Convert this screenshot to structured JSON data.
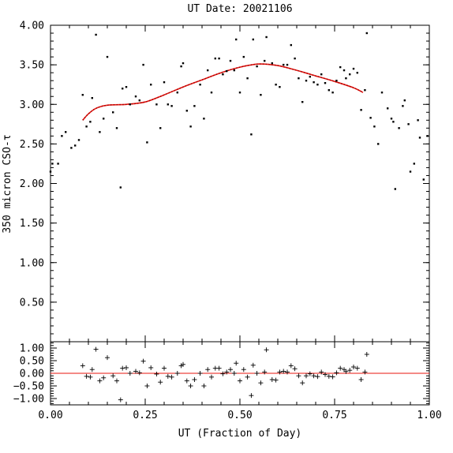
{
  "chart_data": [
    {
      "type": "scatter",
      "title": "UT Date: 20021106",
      "xlabel": "",
      "ylabel": "350 micron CSO-τ",
      "xlim": [
        0.0,
        1.0
      ],
      "ylim": [
        0.0,
        4.0
      ],
      "yticks": [
        "0.50",
        "1.00",
        "1.50",
        "2.00",
        "2.50",
        "3.00",
        "3.50",
        "4.00"
      ],
      "grid": false,
      "series": [
        {
          "kind": "points",
          "color": "#000000",
          "points": [
            [
              0.0,
              2.15
            ],
            [
              0.005,
              2.25
            ],
            [
              0.02,
              2.25
            ],
            [
              0.03,
              2.6
            ],
            [
              0.04,
              2.65
            ],
            [
              0.055,
              2.45
            ],
            [
              0.065,
              2.48
            ],
            [
              0.075,
              2.55
            ],
            [
              0.085,
              3.12
            ],
            [
              0.095,
              2.72
            ],
            [
              0.105,
              2.78
            ],
            [
              0.11,
              3.08
            ],
            [
              0.12,
              3.88
            ],
            [
              0.13,
              2.65
            ],
            [
              0.14,
              2.82
            ],
            [
              0.15,
              3.6
            ],
            [
              0.165,
              2.9
            ],
            [
              0.175,
              2.7
            ],
            [
              0.185,
              1.95
            ],
            [
              0.19,
              3.2
            ],
            [
              0.2,
              3.22
            ],
            [
              0.21,
              3.0
            ],
            [
              0.225,
              3.1
            ],
            [
              0.235,
              3.05
            ],
            [
              0.245,
              3.5
            ],
            [
              0.255,
              2.52
            ],
            [
              0.265,
              3.25
            ],
            [
              0.28,
              3.0
            ],
            [
              0.29,
              2.7
            ],
            [
              0.3,
              3.28
            ],
            [
              0.31,
              3.0
            ],
            [
              0.32,
              2.98
            ],
            [
              0.335,
              3.15
            ],
            [
              0.345,
              3.48
            ],
            [
              0.35,
              3.52
            ],
            [
              0.36,
              2.92
            ],
            [
              0.37,
              2.72
            ],
            [
              0.38,
              2.98
            ],
            [
              0.395,
              3.25
            ],
            [
              0.405,
              2.82
            ],
            [
              0.415,
              3.43
            ],
            [
              0.425,
              3.15
            ],
            [
              0.435,
              3.58
            ],
            [
              0.445,
              3.58
            ],
            [
              0.455,
              3.38
            ],
            [
              0.465,
              3.42
            ],
            [
              0.475,
              3.55
            ],
            [
              0.485,
              3.43
            ],
            [
              0.49,
              3.82
            ],
            [
              0.5,
              3.15
            ],
            [
              0.51,
              3.6
            ],
            [
              0.52,
              3.33
            ],
            [
              0.53,
              2.62
            ],
            [
              0.535,
              3.82
            ],
            [
              0.545,
              3.48
            ],
            [
              0.555,
              3.12
            ],
            [
              0.565,
              3.55
            ],
            [
              0.57,
              3.85
            ],
            [
              0.585,
              3.52
            ],
            [
              0.595,
              3.25
            ],
            [
              0.605,
              3.22
            ],
            [
              0.615,
              3.5
            ],
            [
              0.625,
              3.5
            ],
            [
              0.635,
              3.75
            ],
            [
              0.645,
              3.58
            ],
            [
              0.655,
              3.33
            ],
            [
              0.665,
              3.03
            ],
            [
              0.675,
              3.3
            ],
            [
              0.685,
              3.35
            ],
            [
              0.695,
              3.28
            ],
            [
              0.705,
              3.25
            ],
            [
              0.715,
              3.38
            ],
            [
              0.725,
              3.27
            ],
            [
              0.735,
              3.18
            ],
            [
              0.745,
              3.15
            ],
            [
              0.755,
              3.3
            ],
            [
              0.765,
              3.47
            ],
            [
              0.775,
              3.43
            ],
            [
              0.78,
              3.33
            ],
            [
              0.79,
              3.38
            ],
            [
              0.8,
              3.45
            ],
            [
              0.81,
              3.4
            ],
            [
              0.82,
              2.93
            ],
            [
              0.83,
              3.18
            ],
            [
              0.835,
              3.9
            ],
            [
              0.845,
              2.83
            ],
            [
              0.855,
              2.72
            ],
            [
              0.865,
              2.5
            ],
            [
              0.875,
              3.15
            ],
            [
              0.89,
              2.95
            ],
            [
              0.9,
              2.82
            ],
            [
              0.905,
              2.78
            ],
            [
              0.91,
              1.93
            ],
            [
              0.92,
              2.7
            ],
            [
              0.93,
              2.98
            ],
            [
              0.935,
              3.05
            ],
            [
              0.945,
              2.75
            ],
            [
              0.95,
              2.15
            ],
            [
              0.96,
              2.25
            ],
            [
              0.97,
              2.8
            ],
            [
              0.975,
              2.58
            ],
            [
              0.985,
              2.05
            ],
            [
              0.995,
              2.6
            ]
          ]
        },
        {
          "kind": "fit-curve",
          "color": "#e8140f",
          "points": [
            [
              0.085,
              2.8
            ],
            [
              0.1,
              2.88
            ],
            [
              0.12,
              2.95
            ],
            [
              0.15,
              2.99
            ],
            [
              0.2,
              3.0
            ],
            [
              0.25,
              3.03
            ],
            [
              0.3,
              3.12
            ],
            [
              0.35,
              3.22
            ],
            [
              0.4,
              3.31
            ],
            [
              0.45,
              3.4
            ],
            [
              0.5,
              3.47
            ],
            [
              0.55,
              3.51
            ],
            [
              0.6,
              3.49
            ],
            [
              0.65,
              3.43
            ],
            [
              0.7,
              3.36
            ],
            [
              0.75,
              3.29
            ],
            [
              0.8,
              3.21
            ],
            [
              0.825,
              3.15
            ]
          ]
        }
      ]
    },
    {
      "type": "scatter",
      "xlabel": "UT (Fraction of Day)",
      "ylabel": "",
      "xlim": [
        0.0,
        1.0
      ],
      "ylim": [
        -1.25,
        1.25
      ],
      "xticks": [
        "0.00",
        "0.25",
        "0.50",
        "0.75",
        "1.00"
      ],
      "yticks": [
        "−1.00",
        "−0.50",
        "0.00",
        "0.50",
        "1.00"
      ],
      "grid": false,
      "series": [
        {
          "kind": "residual-points",
          "marker": "+",
          "color": "#000000",
          "points": [
            [
              0.085,
              0.3
            ],
            [
              0.095,
              -0.12
            ],
            [
              0.105,
              -0.15
            ],
            [
              0.11,
              0.15
            ],
            [
              0.12,
              0.95
            ],
            [
              0.13,
              -0.3
            ],
            [
              0.14,
              -0.18
            ],
            [
              0.15,
              0.62
            ],
            [
              0.165,
              -0.1
            ],
            [
              0.175,
              -0.3
            ],
            [
              0.185,
              -1.05
            ],
            [
              0.19,
              0.2
            ],
            [
              0.2,
              0.22
            ],
            [
              0.21,
              0.0
            ],
            [
              0.225,
              0.08
            ],
            [
              0.235,
              0.02
            ],
            [
              0.245,
              0.48
            ],
            [
              0.255,
              -0.5
            ],
            [
              0.265,
              0.22
            ],
            [
              0.28,
              -0.03
            ],
            [
              0.29,
              -0.35
            ],
            [
              0.3,
              0.2
            ],
            [
              0.31,
              -0.12
            ],
            [
              0.32,
              -0.15
            ],
            [
              0.335,
              0.0
            ],
            [
              0.345,
              0.3
            ],
            [
              0.35,
              0.35
            ],
            [
              0.36,
              -0.3
            ],
            [
              0.37,
              -0.5
            ],
            [
              0.38,
              -0.25
            ],
            [
              0.395,
              0.0
            ],
            [
              0.405,
              -0.5
            ],
            [
              0.415,
              0.15
            ],
            [
              0.425,
              -0.15
            ],
            [
              0.435,
              0.2
            ],
            [
              0.445,
              0.2
            ],
            [
              0.455,
              -0.02
            ],
            [
              0.465,
              0.05
            ],
            [
              0.475,
              0.15
            ],
            [
              0.485,
              0.0
            ],
            [
              0.49,
              0.4
            ],
            [
              0.5,
              -0.3
            ],
            [
              0.51,
              0.15
            ],
            [
              0.52,
              -0.15
            ],
            [
              0.53,
              -0.88
            ],
            [
              0.535,
              0.32
            ],
            [
              0.545,
              0.0
            ],
            [
              0.555,
              -0.38
            ],
            [
              0.565,
              0.05
            ],
            [
              0.57,
              0.93
            ],
            [
              0.585,
              -0.25
            ],
            [
              0.595,
              -0.27
            ],
            [
              0.605,
              0.05
            ],
            [
              0.615,
              0.08
            ],
            [
              0.625,
              0.05
            ],
            [
              0.635,
              0.3
            ],
            [
              0.645,
              0.18
            ],
            [
              0.655,
              -0.1
            ],
            [
              0.665,
              -0.38
            ],
            [
              0.675,
              -0.1
            ],
            [
              0.685,
              -0.02
            ],
            [
              0.695,
              -0.1
            ],
            [
              0.705,
              -0.13
            ],
            [
              0.715,
              0.05
            ],
            [
              0.725,
              -0.05
            ],
            [
              0.735,
              -0.12
            ],
            [
              0.745,
              -0.14
            ],
            [
              0.755,
              0.02
            ],
            [
              0.765,
              0.2
            ],
            [
              0.775,
              0.15
            ],
            [
              0.78,
              0.07
            ],
            [
              0.79,
              0.12
            ],
            [
              0.8,
              0.25
            ],
            [
              0.81,
              0.2
            ],
            [
              0.82,
              -0.25
            ],
            [
              0.83,
              0.05
            ],
            [
              0.835,
              0.75
            ]
          ]
        },
        {
          "kind": "zero-line",
          "color": "#e8140f",
          "points": [
            [
              0.0,
              0.0
            ],
            [
              1.0,
              0.0
            ]
          ]
        }
      ]
    }
  ]
}
